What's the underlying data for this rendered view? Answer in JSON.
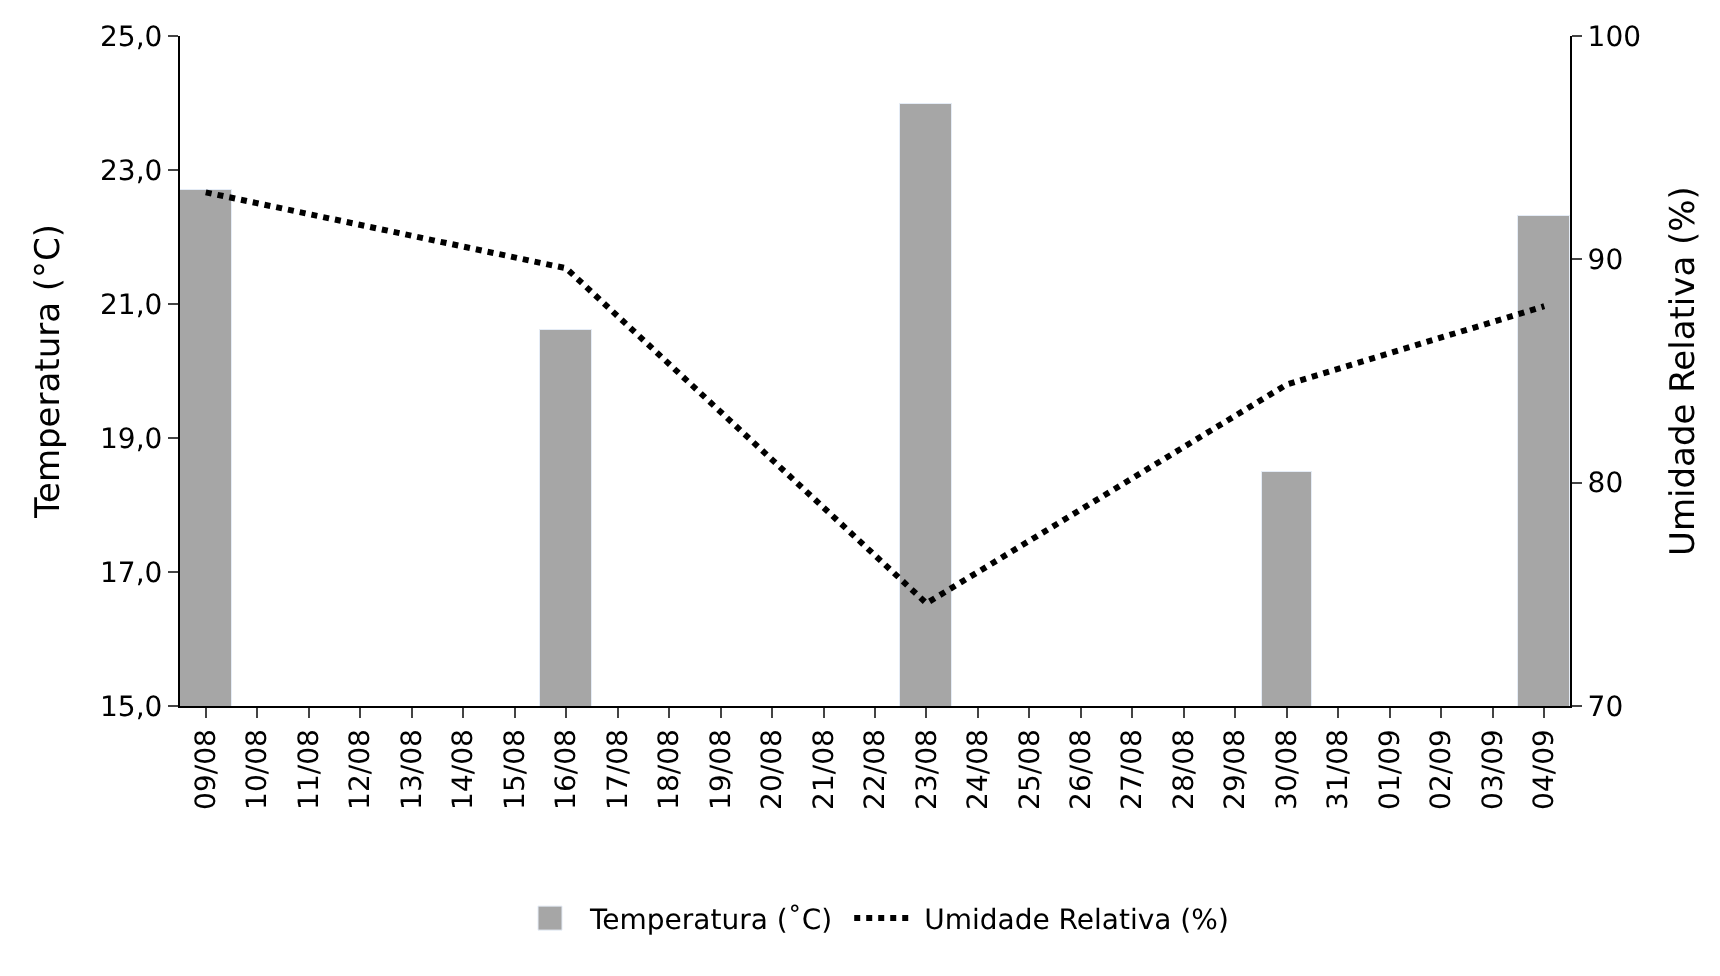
{
  "chart_data": {
    "type": "bar",
    "categories": [
      "09/08",
      "10/08",
      "11/08",
      "12/08",
      "13/08",
      "14/08",
      "15/08",
      "16/08",
      "17/08",
      "18/08",
      "19/08",
      "20/08",
      "21/08",
      "22/08",
      "23/08",
      "24/08",
      "25/08",
      "26/08",
      "27/08",
      "28/08",
      "29/08",
      "30/08",
      "31/08",
      "01/09",
      "02/09",
      "03/09",
      "04/09"
    ],
    "series": [
      {
        "name": "Temperatura (˚C)",
        "color": "#a6a6a6",
        "values": [
          22.7,
          null,
          null,
          null,
          null,
          null,
          null,
          20.6,
          null,
          null,
          null,
          null,
          null,
          null,
          24.0,
          null,
          null,
          null,
          null,
          null,
          null,
          18.5,
          null,
          null,
          null,
          null,
          22.3
        ]
      },
      {
        "name": "Umidade Relativa (%)",
        "color": "#000000",
        "type": "line",
        "axis": "y2",
        "line_style": "dotted",
        "values": [
          93.0,
          null,
          null,
          null,
          null,
          null,
          null,
          89.6,
          null,
          null,
          null,
          null,
          null,
          null,
          74.6,
          null,
          null,
          null,
          null,
          null,
          null,
          84.4,
          null,
          null,
          null,
          null,
          87.9
        ]
      }
    ],
    "ylabel": "Temperatura (°C)",
    "y2label": "Umidade Relativa (%)",
    "ylim": [
      15,
      25
    ],
    "yticks": [
      {
        "value": 15,
        "label": "15,0"
      },
      {
        "value": 17,
        "label": "17,0"
      },
      {
        "value": 19,
        "label": "19,0"
      },
      {
        "value": 21,
        "label": "21,0"
      },
      {
        "value": 23,
        "label": "23,0"
      },
      {
        "value": 25,
        "label": "25,0"
      }
    ],
    "y2lim": [
      70,
      100
    ],
    "y2ticks": [
      70,
      80,
      90,
      100
    ],
    "legend": "bottom"
  }
}
